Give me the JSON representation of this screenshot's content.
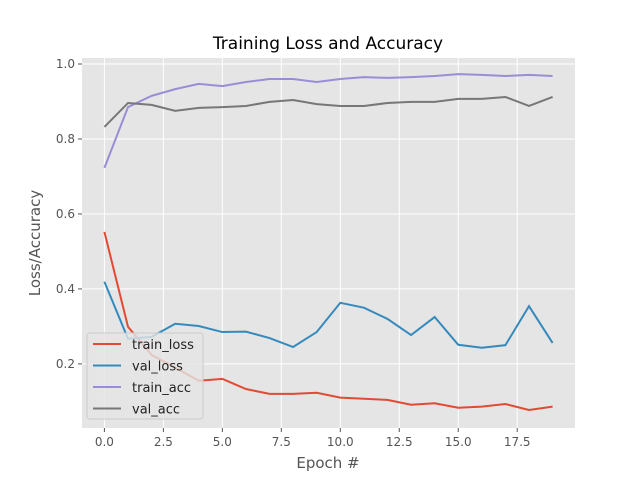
{
  "chart_data": {
    "type": "line",
    "title": "Training Loss and Accuracy",
    "xlabel": "Epoch #",
    "ylabel": "Loss/Accuracy",
    "xlim": [
      -0.95,
      19.95
    ],
    "ylim": [
      0.029,
      1.016
    ],
    "xticks": [
      0,
      2.5,
      5,
      7.5,
      10,
      12.5,
      15,
      17.5
    ],
    "xtick_labels": [
      "0.0",
      "2.5",
      "5.0",
      "7.5",
      "10.0",
      "12.5",
      "15.0",
      "17.5"
    ],
    "yticks": [
      0.2,
      0.4,
      0.6,
      0.8,
      1.0
    ],
    "ytick_labels": [
      "0.2",
      "0.4",
      "0.6",
      "0.8",
      "1.0"
    ],
    "grid": true,
    "legend_position": "lower-left",
    "x": [
      0,
      1,
      2,
      3,
      4,
      5,
      6,
      7,
      8,
      9,
      10,
      11,
      12,
      13,
      14,
      15,
      16,
      17,
      18,
      19
    ],
    "series": [
      {
        "name": "train_loss",
        "color": "#E24A33",
        "values": [
          0.552,
          0.299,
          0.224,
          0.19,
          0.155,
          0.16,
          0.133,
          0.12,
          0.12,
          0.123,
          0.11,
          0.107,
          0.104,
          0.091,
          0.095,
          0.083,
          0.086,
          0.093,
          0.077,
          0.086
        ]
      },
      {
        "name": "val_loss",
        "color": "#348ABD",
        "values": [
          0.419,
          0.267,
          0.272,
          0.307,
          0.301,
          0.285,
          0.286,
          0.269,
          0.245,
          0.285,
          0.363,
          0.35,
          0.32,
          0.277,
          0.325,
          0.251,
          0.243,
          0.25,
          0.354,
          0.256
        ]
      },
      {
        "name": "train_acc",
        "color": "#988ED5",
        "values": [
          0.723,
          0.885,
          0.915,
          0.933,
          0.947,
          0.941,
          0.952,
          0.96,
          0.96,
          0.952,
          0.96,
          0.965,
          0.963,
          0.965,
          0.968,
          0.973,
          0.971,
          0.968,
          0.971,
          0.968
        ]
      },
      {
        "name": "val_acc",
        "color": "#777777",
        "values": [
          0.832,
          0.896,
          0.891,
          0.875,
          0.883,
          0.885,
          0.888,
          0.899,
          0.904,
          0.893,
          0.888,
          0.888,
          0.896,
          0.899,
          0.899,
          0.907,
          0.907,
          0.912,
          0.888,
          0.912
        ]
      }
    ]
  }
}
